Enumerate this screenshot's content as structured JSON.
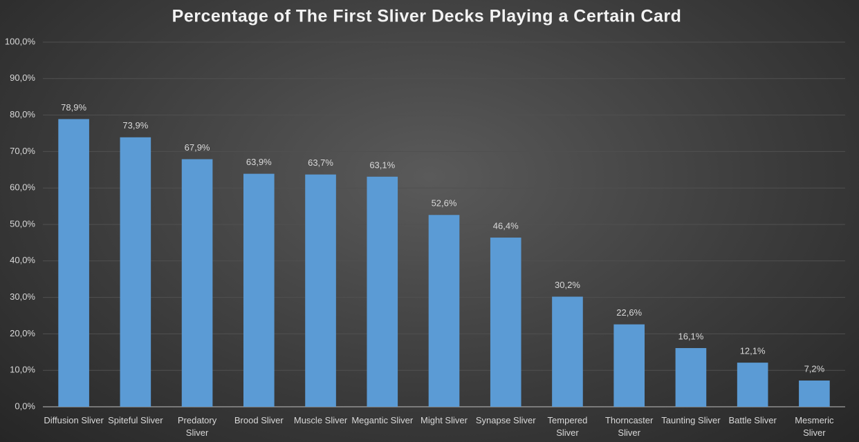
{
  "chart_data": {
    "type": "bar",
    "title": "Percentage of The First Sliver Decks Playing a Certain Card",
    "categories": [
      "Diffusion Sliver",
      "Spiteful Sliver",
      "Predatory Sliver",
      "Brood Sliver",
      "Muscle Sliver",
      "Megantic Sliver",
      "Might Sliver",
      "Synapse Sliver",
      "Tempered Sliver",
      "Thorncaster Sliver",
      "Taunting Sliver",
      "Battle Sliver",
      "Mesmeric Sliver"
    ],
    "values": [
      78.9,
      73.9,
      67.9,
      63.9,
      63.7,
      63.1,
      52.6,
      46.4,
      30.2,
      22.6,
      16.1,
      12.1,
      7.2
    ],
    "value_labels": [
      "78,9%",
      "73,9%",
      "67,9%",
      "63,9%",
      "63,7%",
      "63,1%",
      "52,6%",
      "46,4%",
      "30,2%",
      "22,6%",
      "16,1%",
      "12,1%",
      "7,2%"
    ],
    "color": "#5b9bd5",
    "ylim": [
      0,
      100
    ],
    "yticks": [
      {
        "value": 0,
        "label": "0,0%"
      },
      {
        "value": 10,
        "label": "10,0%"
      },
      {
        "value": 20,
        "label": "20,0%"
      },
      {
        "value": 30,
        "label": "30,0%"
      },
      {
        "value": 40,
        "label": "40,0%"
      },
      {
        "value": 50,
        "label": "50,0%"
      },
      {
        "value": 60,
        "label": "60,0%"
      },
      {
        "value": 70,
        "label": "70,0%"
      },
      {
        "value": 80,
        "label": "80,0%"
      },
      {
        "value": 90,
        "label": "90,0%"
      },
      {
        "value": 100,
        "label": "100,0%"
      }
    ],
    "grid": true
  }
}
